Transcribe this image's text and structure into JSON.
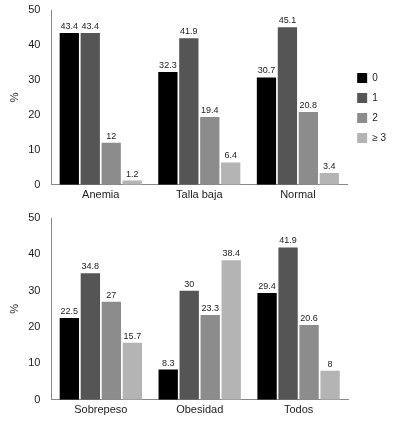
{
  "chart_data": [
    {
      "type": "bar",
      "y_label": "%",
      "categories": [
        "Anemia",
        "Talla baja",
        "Normal"
      ],
      "series": [
        {
          "name": "0",
          "color": "#000000",
          "values": [
            43.4,
            32.3,
            30.7
          ]
        },
        {
          "name": "1",
          "color": "#555555",
          "values": [
            43.4,
            41.9,
            45.1
          ]
        },
        {
          "name": "2",
          "color": "#8c8c8c",
          "values": [
            12,
            19.4,
            20.8
          ]
        },
        {
          "name": "≥ 3",
          "color": "#b4b4b4",
          "values": [
            1.2,
            6.4,
            3.4
          ]
        }
      ],
      "ylim": [
        0,
        50
      ],
      "yticks": [
        0,
        10,
        20,
        30,
        40,
        50
      ],
      "grid": false,
      "legend": "right",
      "data_labels": true
    },
    {
      "type": "bar",
      "y_label": "%",
      "categories": [
        "Sobrepeso",
        "Obesidad",
        "Todos"
      ],
      "series": [
        {
          "name": "0",
          "color": "#000000",
          "values": [
            22.5,
            8.3,
            29.4
          ]
        },
        {
          "name": "1",
          "color": "#555555",
          "values": [
            34.8,
            30,
            41.9
          ]
        },
        {
          "name": "2",
          "color": "#8c8c8c",
          "values": [
            27,
            23.3,
            20.6
          ]
        },
        {
          "name": "≥ 3",
          "color": "#b4b4b4",
          "values": [
            15.7,
            38.4,
            8
          ]
        }
      ],
      "ylim": [
        0,
        50
      ],
      "yticks": [
        0,
        10,
        20,
        30,
        40,
        50
      ],
      "grid": false,
      "data_labels": true
    }
  ]
}
